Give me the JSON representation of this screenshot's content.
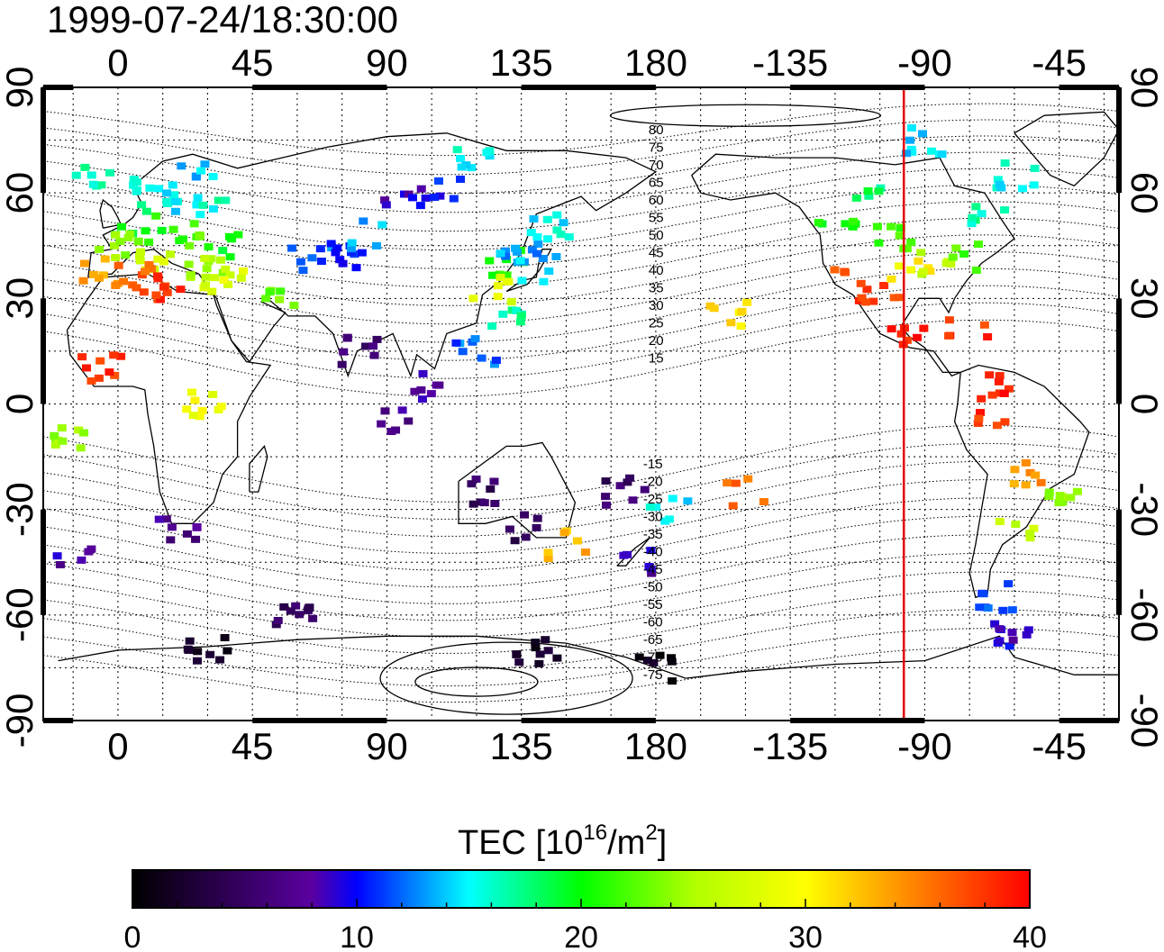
{
  "title": "1999-07-24/18:30:00",
  "x_tick_labels": [
    "0",
    "45",
    "90",
    "135",
    "180",
    "-135",
    "-90",
    "-45"
  ],
  "y_tick_labels": [
    "90",
    "60",
    "30",
    "0",
    "-30",
    "-60",
    "-90"
  ],
  "mlat_labels_north": [
    "80",
    "75",
    "70",
    "65",
    "60",
    "55",
    "50",
    "45",
    "40",
    "35",
    "30",
    "25",
    "20",
    "15"
  ],
  "mlat_labels_south": [
    "-15",
    "-20",
    "-25",
    "-30",
    "-35",
    "-40",
    "-45",
    "-50",
    "-55",
    "-60",
    "-65",
    "-70",
    "-75"
  ],
  "colorbar": {
    "label_main": "TEC  [10",
    "label_exp1": "16",
    "label_mid": "/m",
    "label_exp2": "2",
    "label_end": "]",
    "tick_labels": [
      "0",
      "10",
      "20",
      "30",
      "40"
    ],
    "range": [
      0,
      40
    ]
  },
  "colors": {
    "meridian_line": "#e00000",
    "colormap": [
      "#000000",
      "#5a00a0",
      "#0000ff",
      "#00ffff",
      "#00ff00",
      "#ffff00",
      "#ff8000",
      "#ff0000"
    ]
  },
  "chart_data": {
    "type": "heatmap",
    "title": "1999-07-24/18:30:00",
    "quantity": "TEC [10^16/m^2]",
    "xlim": [
      -25,
      335
    ],
    "ylim": [
      -90,
      90
    ],
    "vertical_marker_lon": 263,
    "observations": [
      {
        "lon": -8,
        "lat": 65,
        "tec": 17
      },
      {
        "lon": 10,
        "lat": 60,
        "tec": 16
      },
      {
        "lon": 20,
        "lat": 58,
        "tec": 15
      },
      {
        "lon": 30,
        "lat": 55,
        "tec": 16
      },
      {
        "lon": 25,
        "lat": 65,
        "tec": 14
      },
      {
        "lon": 5,
        "lat": 52,
        "tec": 19
      },
      {
        "lon": 15,
        "lat": 50,
        "tec": 21
      },
      {
        "lon": 25,
        "lat": 48,
        "tec": 22
      },
      {
        "lon": 0,
        "lat": 45,
        "tec": 24
      },
      {
        "lon": 12,
        "lat": 42,
        "tec": 27
      },
      {
        "lon": -5,
        "lat": 38,
        "tec": 34
      },
      {
        "lon": 5,
        "lat": 36,
        "tec": 36
      },
      {
        "lon": 15,
        "lat": 33,
        "tec": 38
      },
      {
        "lon": 30,
        "lat": 40,
        "tec": 25
      },
      {
        "lon": 35,
        "lat": 35,
        "tec": 28
      },
      {
        "lon": 40,
        "lat": 45,
        "tec": 20
      },
      {
        "lon": 55,
        "lat": 30,
        "tec": 23
      },
      {
        "lon": 65,
        "lat": 42,
        "tec": 12
      },
      {
        "lon": 75,
        "lat": 42,
        "tec": 11
      },
      {
        "lon": 85,
        "lat": 48,
        "tec": 14
      },
      {
        "lon": 95,
        "lat": 58,
        "tec": 9
      },
      {
        "lon": 110,
        "lat": 60,
        "tec": 10
      },
      {
        "lon": 120,
        "lat": 70,
        "tec": 15
      },
      {
        "lon": 130,
        "lat": 40,
        "tec": 21
      },
      {
        "lon": 125,
        "lat": 33,
        "tec": 28
      },
      {
        "lon": 140,
        "lat": 38,
        "tec": 14
      },
      {
        "lon": 135,
        "lat": 45,
        "tec": 13
      },
      {
        "lon": 145,
        "lat": 50,
        "tec": 15
      },
      {
        "lon": 130,
        "lat": 25,
        "tec": 17
      },
      {
        "lon": 120,
        "lat": 15,
        "tec": 12
      },
      {
        "lon": 105,
        "lat": 5,
        "tec": 8
      },
      {
        "lon": 80,
        "lat": 15,
        "tec": 6
      },
      {
        "lon": 95,
        "lat": -5,
        "tec": 7
      },
      {
        "lon": 120,
        "lat": -25,
        "tec": 5
      },
      {
        "lon": 135,
        "lat": -35,
        "tec": 4
      },
      {
        "lon": 150,
        "lat": -40,
        "tec": 33
      },
      {
        "lon": 170,
        "lat": -25,
        "tec": 5
      },
      {
        "lon": 175,
        "lat": -45,
        "tec": 8
      },
      {
        "lon": 185,
        "lat": -30,
        "tec": 15
      },
      {
        "lon": 210,
        "lat": -25,
        "tec": 36
      },
      {
        "lon": 205,
        "lat": 25,
        "tec": 31
      },
      {
        "lon": 245,
        "lat": 35,
        "tec": 37
      },
      {
        "lon": 255,
        "lat": 32,
        "tec": 38
      },
      {
        "lon": 265,
        "lat": 38,
        "tec": 30
      },
      {
        "lon": 275,
        "lat": 40,
        "tec": 26
      },
      {
        "lon": 285,
        "lat": 42,
        "tec": 22
      },
      {
        "lon": 260,
        "lat": 48,
        "tec": 22
      },
      {
        "lon": 240,
        "lat": 50,
        "tec": 20
      },
      {
        "lon": 250,
        "lat": 62,
        "tec": 18
      },
      {
        "lon": 290,
        "lat": 55,
        "tec": 17
      },
      {
        "lon": 300,
        "lat": 65,
        "tec": 15
      },
      {
        "lon": 270,
        "lat": 75,
        "tec": 14
      },
      {
        "lon": 265,
        "lat": 20,
        "tec": 39
      },
      {
        "lon": 285,
        "lat": 20,
        "tec": 38
      },
      {
        "lon": 295,
        "lat": 5,
        "tec": 39
      },
      {
        "lon": 290,
        "lat": -5,
        "tec": 38
      },
      {
        "lon": 305,
        "lat": -20,
        "tec": 34
      },
      {
        "lon": 315,
        "lat": -25,
        "tec": 24
      },
      {
        "lon": 300,
        "lat": -35,
        "tec": 26
      },
      {
        "lon": 295,
        "lat": -55,
        "tec": 11
      },
      {
        "lon": 300,
        "lat": -65,
        "tec": 9
      },
      {
        "lon": 20,
        "lat": -35,
        "tec": 7
      },
      {
        "lon": -15,
        "lat": -45,
        "tec": 8
      },
      {
        "lon": 60,
        "lat": -60,
        "tec": 5
      },
      {
        "lon": 30,
        "lat": -70,
        "tec": 2
      },
      {
        "lon": 140,
        "lat": -70,
        "tec": 2
      },
      {
        "lon": 180,
        "lat": -75,
        "tec": 1
      },
      {
        "lon": -5,
        "lat": 10,
        "tec": 38
      },
      {
        "lon": 30,
        "lat": 0,
        "tec": 29
      },
      {
        "lon": -15,
        "lat": -10,
        "tec": 24
      }
    ]
  }
}
